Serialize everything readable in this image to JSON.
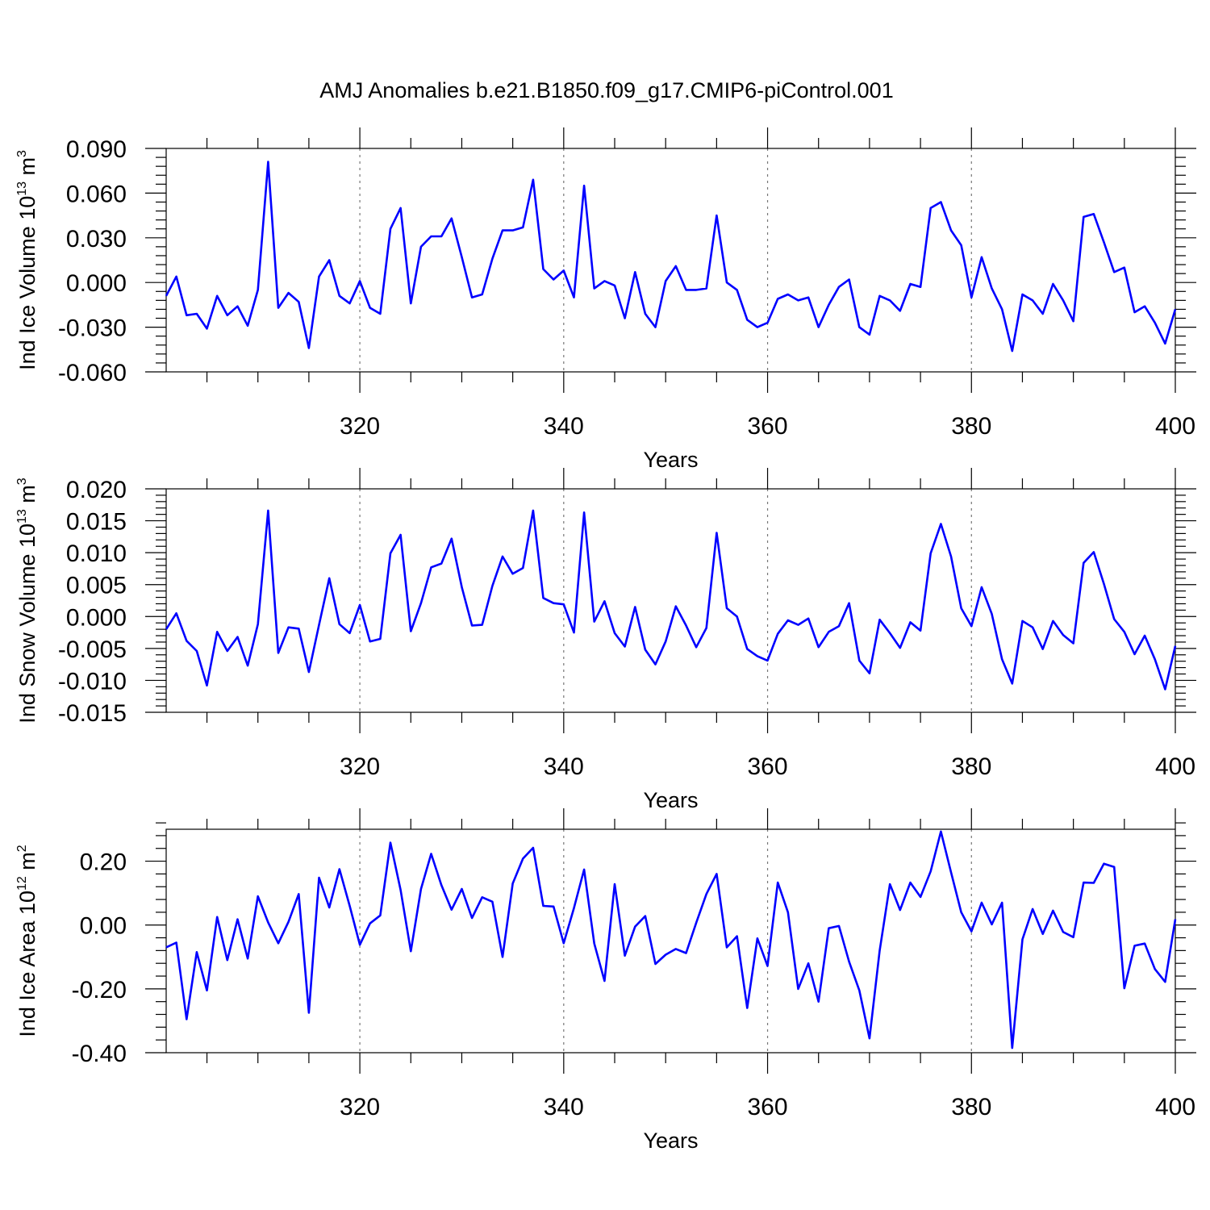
{
  "title": "AMJ Anomalies b.e21.B1850.f09_g17.CMIP6-piControl.001",
  "chart_data": [
    {
      "type": "line",
      "xlabel": "Years",
      "ylabel": {
        "base": "Ind Ice Volume 10",
        "exp": "13",
        "unit": " m",
        "unit_exp": "3"
      },
      "xlim": [
        301,
        400
      ],
      "ylim": [
        -0.06,
        0.09
      ],
      "yticks": [
        "-0.060",
        "-0.030",
        "0.000",
        "0.030",
        "0.060",
        "0.090"
      ],
      "ytick_values": [
        -0.06,
        -0.03,
        0.0,
        0.03,
        0.06,
        0.09
      ],
      "xticks": [
        "320",
        "340",
        "360",
        "380",
        "400"
      ],
      "xtick_values": [
        320,
        340,
        360,
        380,
        400
      ],
      "x": [
        301,
        302,
        303,
        304,
        305,
        306,
        307,
        308,
        309,
        310,
        311,
        312,
        313,
        314,
        315,
        316,
        317,
        318,
        319,
        320,
        321,
        322,
        323,
        324,
        325,
        326,
        327,
        328,
        329,
        330,
        331,
        332,
        333,
        334,
        335,
        336,
        337,
        338,
        339,
        340,
        341,
        342,
        343,
        344,
        345,
        346,
        347,
        348,
        349,
        350,
        351,
        352,
        353,
        354,
        355,
        356,
        357,
        358,
        359,
        360,
        361,
        362,
        363,
        364,
        365,
        366,
        367,
        368,
        369,
        370,
        371,
        372,
        373,
        374,
        375,
        376,
        377,
        378,
        379,
        380,
        381,
        382,
        383,
        384,
        385,
        386,
        387,
        388,
        389,
        390,
        391,
        392,
        393,
        394,
        395,
        396,
        397,
        398,
        399,
        400
      ],
      "y": [
        -0.009,
        0.004,
        -0.022,
        -0.021,
        -0.031,
        -0.009,
        -0.022,
        -0.016,
        -0.029,
        -0.005,
        0.081,
        -0.017,
        -0.007,
        -0.013,
        -0.044,
        0.004,
        0.015,
        -0.009,
        -0.014,
        0.001,
        -0.017,
        -0.021,
        0.036,
        0.05,
        -0.014,
        0.024,
        0.031,
        0.031,
        0.043,
        0.017,
        -0.01,
        -0.008,
        0.016,
        0.035,
        0.035,
        0.037,
        0.069,
        0.009,
        0.002,
        0.008,
        -0.01,
        0.065,
        -0.004,
        0.001,
        -0.002,
        -0.024,
        0.007,
        -0.021,
        -0.03,
        0.001,
        0.011,
        -0.005,
        -0.005,
        -0.004,
        0.045,
        0.0,
        -0.005,
        -0.025,
        -0.03,
        -0.027,
        -0.011,
        -0.008,
        -0.012,
        -0.01,
        -0.03,
        -0.015,
        -0.003,
        0.002,
        -0.03,
        -0.035,
        -0.009,
        -0.012,
        -0.019,
        -0.001,
        -0.003,
        0.05,
        0.054,
        0.035,
        0.025,
        -0.01,
        0.017,
        -0.004,
        -0.018,
        -0.046,
        -0.008,
        -0.012,
        -0.021,
        -0.001,
        -0.012,
        -0.026,
        0.044,
        0.046,
        0.027,
        0.007,
        0.01,
        -0.02,
        -0.016,
        -0.027,
        -0.041,
        -0.018
      ],
      "grid": "dashed vertical at major x ticks"
    },
    {
      "type": "line",
      "xlabel": "Years",
      "ylabel": {
        "base": "Ind Snow Volume 10",
        "exp": "13",
        "unit": " m",
        "unit_exp": "3"
      },
      "xlim": [
        301,
        400
      ],
      "ylim": [
        -0.015,
        0.02
      ],
      "yticks": [
        "-0.015",
        "-0.010",
        "-0.005",
        "0.000",
        "0.005",
        "0.010",
        "0.015",
        "0.020"
      ],
      "ytick_values": [
        -0.015,
        -0.01,
        -0.005,
        0.0,
        0.005,
        0.01,
        0.015,
        0.02
      ],
      "xticks": [
        "320",
        "340",
        "360",
        "380",
        "400"
      ],
      "xtick_values": [
        320,
        340,
        360,
        380,
        400
      ],
      "x": [
        301,
        302,
        303,
        304,
        305,
        306,
        307,
        308,
        309,
        310,
        311,
        312,
        313,
        314,
        315,
        316,
        317,
        318,
        319,
        320,
        321,
        322,
        323,
        324,
        325,
        326,
        327,
        328,
        329,
        330,
        331,
        332,
        333,
        334,
        335,
        336,
        337,
        338,
        339,
        340,
        341,
        342,
        343,
        344,
        345,
        346,
        347,
        348,
        349,
        350,
        351,
        352,
        353,
        354,
        355,
        356,
        357,
        358,
        359,
        360,
        361,
        362,
        363,
        364,
        365,
        366,
        367,
        368,
        369,
        370,
        371,
        372,
        373,
        374,
        375,
        376,
        377,
        378,
        379,
        380,
        381,
        382,
        383,
        384,
        385,
        386,
        387,
        388,
        389,
        390,
        391,
        392,
        393,
        394,
        395,
        396,
        397,
        398,
        399,
        400
      ],
      "y": [
        -0.002,
        0.0005,
        -0.0038,
        -0.0054,
        -0.0108,
        -0.0024,
        -0.0054,
        -0.0032,
        -0.0077,
        -0.0012,
        0.0166,
        -0.0057,
        -0.0017,
        -0.0019,
        -0.0087,
        -0.0013,
        0.006,
        -0.0012,
        -0.0026,
        0.0018,
        -0.0039,
        -0.0035,
        0.0099,
        0.0128,
        -0.0023,
        0.0021,
        0.0077,
        0.0083,
        0.0122,
        0.0046,
        -0.0014,
        -0.0013,
        0.0048,
        0.0094,
        0.0067,
        0.0076,
        0.0166,
        0.0029,
        0.0021,
        0.0019,
        -0.0025,
        0.0163,
        -0.0008,
        0.0024,
        -0.0026,
        -0.0047,
        0.0015,
        -0.0052,
        -0.0075,
        -0.0039,
        0.0016,
        -0.0014,
        -0.0048,
        -0.0018,
        0.0131,
        0.0013,
        0.0,
        -0.0051,
        -0.0062,
        -0.0069,
        -0.0027,
        -0.0006,
        -0.0013,
        -0.0003,
        -0.0048,
        -0.0024,
        -0.0015,
        0.0021,
        -0.0069,
        -0.0089,
        -0.0005,
        -0.0026,
        -0.0049,
        -0.0009,
        -0.0022,
        0.0099,
        0.0145,
        0.0094,
        0.0013,
        -0.0015,
        0.0046,
        0.0004,
        -0.0067,
        -0.0105,
        -0.0007,
        -0.0017,
        -0.0051,
        -0.0007,
        -0.0029,
        -0.0042,
        0.0084,
        0.0101,
        0.0051,
        -0.0004,
        -0.0024,
        -0.0059,
        -0.003,
        -0.0067,
        -0.0114,
        -0.0046
      ],
      "grid": "dashed vertical at major x ticks"
    },
    {
      "type": "line",
      "xlabel": "Years",
      "ylabel": {
        "base": "Ind Ice Area 10",
        "exp": "12",
        "unit": " m",
        "unit_exp": "2"
      },
      "xlim": [
        301,
        400
      ],
      "ylim": [
        -0.4,
        0.3
      ],
      "yticks": [
        "-0.40",
        "-0.20",
        "0.00",
        "0.20"
      ],
      "ytick_values": [
        -0.4,
        -0.2,
        0.0,
        0.2
      ],
      "xticks": [
        "320",
        "340",
        "360",
        "380",
        "400"
      ],
      "xtick_values": [
        320,
        340,
        360,
        380,
        400
      ],
      "x": [
        301,
        302,
        303,
        304,
        305,
        306,
        307,
        308,
        309,
        310,
        311,
        312,
        313,
        314,
        315,
        316,
        317,
        318,
        319,
        320,
        321,
        322,
        323,
        324,
        325,
        326,
        327,
        328,
        329,
        330,
        331,
        332,
        333,
        334,
        335,
        336,
        337,
        338,
        339,
        340,
        341,
        342,
        343,
        344,
        345,
        346,
        347,
        348,
        349,
        350,
        351,
        352,
        353,
        354,
        355,
        356,
        357,
        358,
        359,
        360,
        361,
        362,
        363,
        364,
        365,
        366,
        367,
        368,
        369,
        370,
        371,
        372,
        373,
        374,
        375,
        376,
        377,
        378,
        379,
        380,
        381,
        382,
        383,
        384,
        385,
        386,
        387,
        388,
        389,
        390,
        391,
        392,
        393,
        394,
        395,
        396,
        397,
        398,
        399,
        400
      ],
      "y": [
        -0.07,
        -0.055,
        -0.295,
        -0.085,
        -0.205,
        0.025,
        -0.11,
        0.018,
        -0.105,
        0.09,
        0.008,
        -0.057,
        0.01,
        0.097,
        -0.275,
        0.148,
        0.055,
        0.175,
        0.06,
        -0.062,
        0.005,
        0.03,
        0.258,
        0.11,
        -0.082,
        0.113,
        0.223,
        0.125,
        0.048,
        0.113,
        0.022,
        0.087,
        0.073,
        -0.1,
        0.13,
        0.208,
        0.242,
        0.06,
        0.058,
        -0.057,
        0.053,
        0.174,
        -0.058,
        -0.175,
        0.128,
        -0.096,
        -0.005,
        0.028,
        -0.122,
        -0.093,
        -0.075,
        -0.088,
        0.007,
        0.097,
        0.16,
        -0.07,
        -0.035,
        -0.26,
        -0.042,
        -0.128,
        0.133,
        0.04,
        -0.2,
        -0.12,
        -0.24,
        -0.01,
        -0.003,
        -0.115,
        -0.205,
        -0.355,
        -0.08,
        0.128,
        0.047,
        0.133,
        0.088,
        0.168,
        0.293,
        0.165,
        0.04,
        -0.02,
        0.07,
        0.002,
        0.07,
        -0.385,
        -0.045,
        0.05,
        -0.028,
        0.045,
        -0.022,
        -0.038,
        0.133,
        0.132,
        0.192,
        0.182,
        -0.198,
        -0.065,
        -0.058,
        -0.138,
        -0.178,
        0.018
      ],
      "grid": "dashed vertical at major x ticks"
    }
  ]
}
